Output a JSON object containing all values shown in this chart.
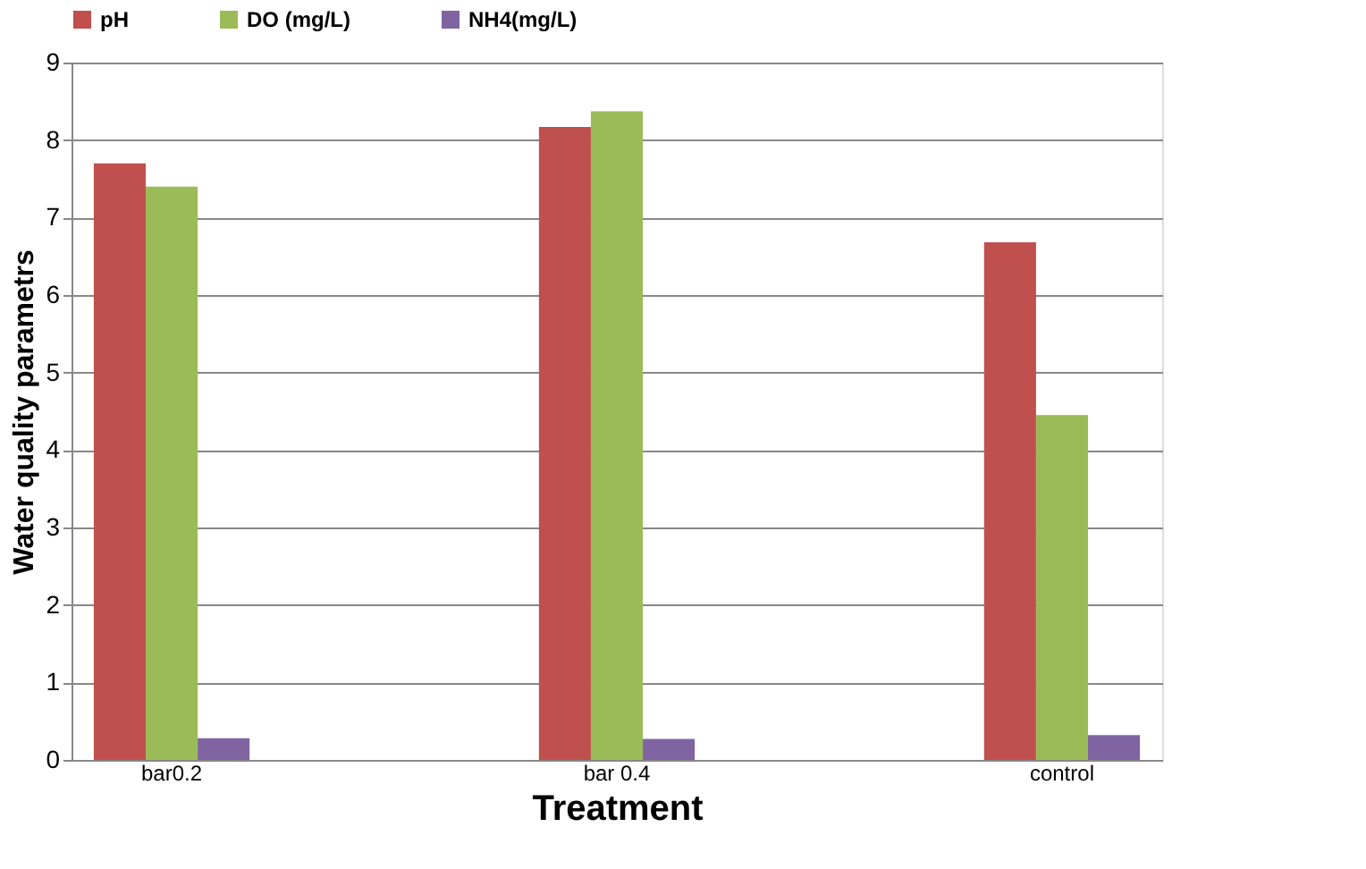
{
  "chart_data": {
    "type": "bar",
    "xlabel": "Treatment",
    "ylabel": "Water quality parametrs",
    "categories": [
      "bar0.2",
      "bar 0.4",
      "control"
    ],
    "series": [
      {
        "name": "pH",
        "color": "#c0504d",
        "values": [
          7.7,
          8.17,
          6.68
        ]
      },
      {
        "name": "DO (mg/L)",
        "color": "#9bbb59",
        "values": [
          7.4,
          8.37,
          4.45
        ]
      },
      {
        "name": "NH4(mg/L)",
        "color": "#8064a2",
        "values": [
          0.28,
          0.27,
          0.32
        ]
      }
    ],
    "ylim": [
      0,
      9
    ],
    "yticks": [
      0,
      1,
      2,
      3,
      4,
      5,
      6,
      7,
      8,
      9
    ],
    "grid": "y",
    "legend": "top"
  }
}
